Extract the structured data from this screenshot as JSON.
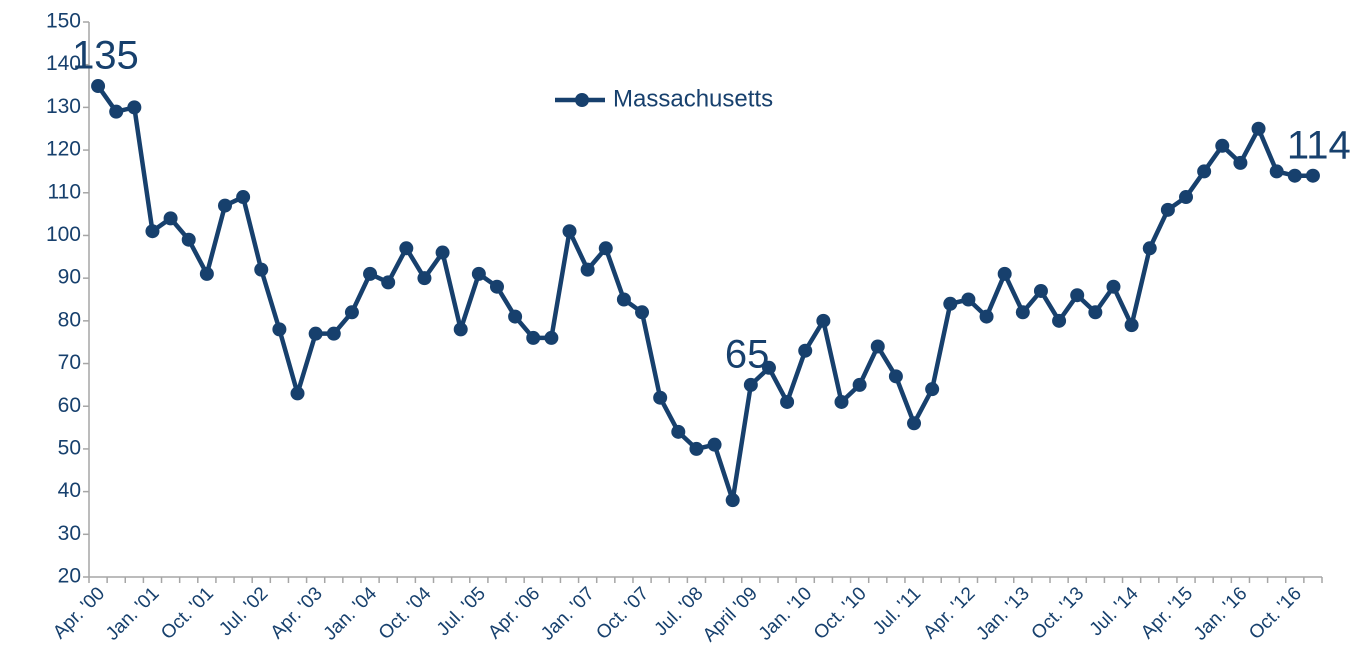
{
  "chart_data": {
    "type": "line",
    "categories": [
      "Apr. '00",
      null,
      null,
      "Jan. '01",
      null,
      null,
      "Oct. '01",
      null,
      null,
      "Jul. '02",
      null,
      null,
      "Apr. '03",
      null,
      null,
      "Jan. '04",
      null,
      null,
      "Oct. '04",
      null,
      null,
      "Jul. '05",
      null,
      null,
      "Apr. '06",
      null,
      null,
      "Jan. '07",
      null,
      null,
      "Oct. '07",
      null,
      null,
      "Jul. '08",
      null,
      null,
      "April '09",
      null,
      null,
      "Jan. '10",
      null,
      null,
      "Oct. '10",
      null,
      null,
      "Jul. '11",
      null,
      null,
      "Apr. '12",
      null,
      null,
      "Jan. '13",
      null,
      null,
      "Oct. '13",
      null,
      null,
      "Jul. '14",
      null,
      null,
      "Apr. '15",
      null,
      null,
      "Jan. '16",
      null,
      null,
      "Oct. '16",
      null
    ],
    "series": [
      {
        "name": "Massachusetts",
        "color": "#17406d",
        "values": [
          135,
          129,
          130,
          101,
          104,
          99,
          91,
          107,
          109,
          92,
          78,
          63,
          77,
          77,
          82,
          91,
          89,
          97,
          90,
          96,
          78,
          91,
          88,
          81,
          76,
          76,
          101,
          92,
          97,
          85,
          82,
          62,
          54,
          50,
          51,
          38,
          65,
          69,
          61,
          73,
          80,
          61,
          65,
          74,
          67,
          56,
          64,
          84,
          85,
          81,
          91,
          82,
          87,
          80,
          86,
          82,
          88,
          79,
          97,
          106,
          109,
          115,
          121,
          117,
          125,
          115,
          114,
          114
        ]
      }
    ],
    "data_labels": [
      0,
      36,
      67
    ],
    "ylim": [
      20,
      150
    ],
    "yticks": [
      20,
      30,
      40,
      50,
      60,
      70,
      80,
      90,
      100,
      110,
      120,
      130,
      140,
      150
    ],
    "legend": "top",
    "grid": false
  }
}
